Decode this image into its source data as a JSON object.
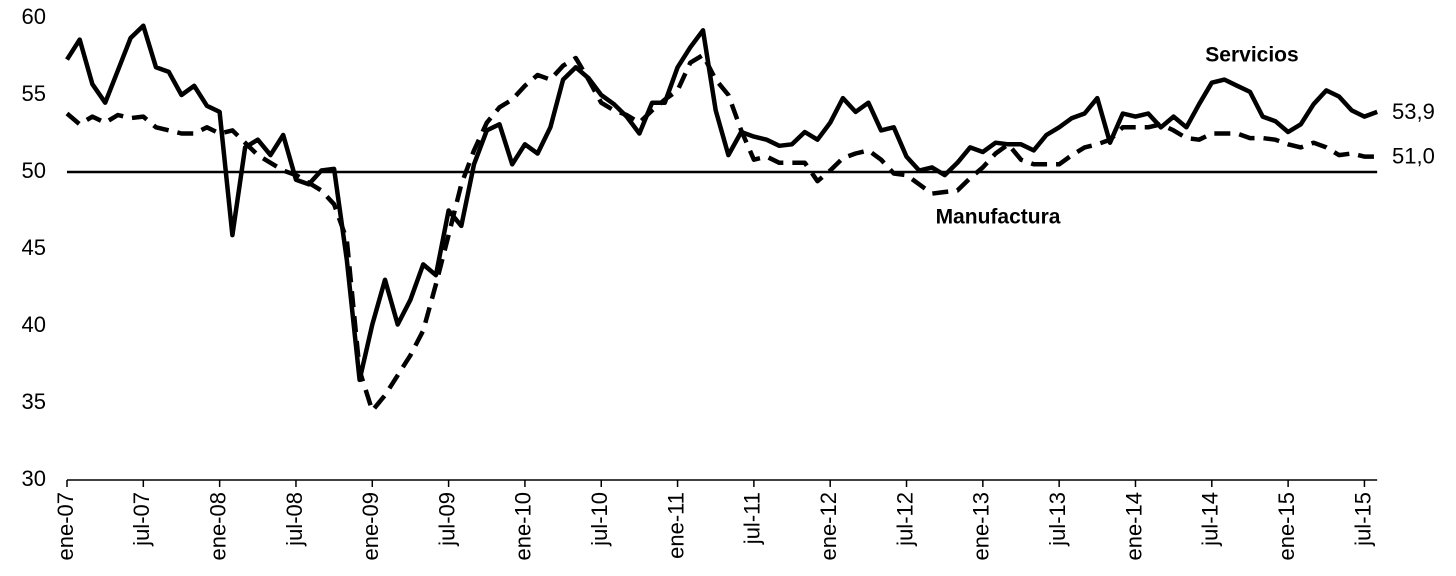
{
  "chart_data": {
    "type": "line",
    "categories": [
      "ene-07",
      null,
      null,
      null,
      null,
      null,
      "jul-07",
      null,
      null,
      null,
      null,
      null,
      "ene-08",
      null,
      null,
      null,
      null,
      null,
      "jul-08",
      null,
      null,
      null,
      null,
      null,
      "ene-09",
      null,
      null,
      null,
      null,
      null,
      "jul-09",
      null,
      null,
      null,
      null,
      null,
      "ene-10",
      null,
      null,
      null,
      null,
      null,
      "jul-10",
      null,
      null,
      null,
      null,
      null,
      "ene-11",
      null,
      null,
      null,
      null,
      null,
      "jul-11",
      null,
      null,
      null,
      null,
      null,
      "ene-12",
      null,
      null,
      null,
      null,
      null,
      "jul-12",
      null,
      null,
      null,
      null,
      null,
      "ene-13",
      null,
      null,
      null,
      null,
      null,
      "jul-13",
      null,
      null,
      null,
      null,
      null,
      "ene-14",
      null,
      null,
      null,
      null,
      null,
      "jul-14",
      null,
      null,
      null,
      null,
      null,
      "ene-15",
      null,
      null,
      null,
      null,
      null,
      "jul-15",
      null
    ],
    "series": [
      {
        "name": "Servicios",
        "color": "#000000",
        "style": "solid",
        "values": [
          57.3,
          58.6,
          55.7,
          54.5,
          56.6,
          58.7,
          59.5,
          56.8,
          56.5,
          55.0,
          55.6,
          54.3,
          53.9,
          45.9,
          51.6,
          52.1,
          51.1,
          52.4,
          49.5,
          49.2,
          50.1,
          50.2,
          44.3,
          36.5,
          40.1,
          43.0,
          40.1,
          41.7,
          44.0,
          43.3,
          47.5,
          46.5,
          50.5,
          52.7,
          53.1,
          50.5,
          51.8,
          51.2,
          52.9,
          56.0,
          56.8,
          56.1,
          55.0,
          54.4,
          53.6,
          52.5,
          54.5,
          54.5,
          56.8,
          58.1,
          59.2,
          54.0,
          51.1,
          52.6,
          52.3,
          52.1,
          51.7,
          51.8,
          52.6,
          52.1,
          53.2,
          54.8,
          53.9,
          54.5,
          52.7,
          52.9,
          51.0,
          50.1,
          50.3,
          49.8,
          50.6,
          51.6,
          51.3,
          51.9,
          51.8,
          51.8,
          51.4,
          52.4,
          52.9,
          53.5,
          53.8,
          54.8,
          51.9,
          53.8,
          53.6,
          53.8,
          52.9,
          53.6,
          52.9,
          54.4,
          55.8,
          56.0,
          55.6,
          55.2,
          53.6,
          53.3,
          52.6,
          53.1,
          54.4,
          55.3,
          54.9,
          54.0,
          53.6,
          53.9
        ]
      },
      {
        "name": "Manufactura",
        "color": "#000000",
        "style": "dashed",
        "values": [
          53.8,
          53.1,
          53.6,
          53.2,
          53.7,
          53.5,
          53.6,
          52.9,
          52.7,
          52.5,
          52.5,
          52.9,
          52.5,
          52.7,
          51.9,
          51.1,
          50.6,
          50.1,
          49.8,
          49.3,
          48.8,
          47.9,
          45.6,
          37.1,
          34.5,
          35.5,
          36.8,
          38.1,
          39.7,
          42.7,
          45.9,
          49.2,
          51.4,
          53.2,
          54.2,
          54.7,
          55.6,
          56.3,
          56.0,
          56.9,
          57.4,
          56.0,
          54.5,
          54.0,
          53.7,
          53.2,
          54.0,
          54.7,
          55.3,
          57.1,
          57.6,
          56.0,
          55.0,
          52.7,
          50.8,
          51.0,
          50.6,
          50.6,
          50.6,
          49.4,
          50.1,
          50.9,
          51.2,
          51.4,
          50.8,
          49.9,
          49.8,
          49.2,
          48.6,
          48.7,
          48.8,
          49.6,
          50.3,
          51.2,
          51.8,
          50.8,
          50.5,
          50.5,
          50.5,
          51.1,
          51.6,
          51.8,
          52.1,
          52.9,
          52.9,
          52.9,
          53.1,
          52.7,
          52.2,
          52.1,
          52.5,
          52.5,
          52.5,
          52.2,
          52.2,
          52.1,
          51.8,
          51.6,
          51.9,
          51.6,
          51.1,
          51.2,
          51.0,
          51.0
        ]
      }
    ],
    "annotations": [
      {
        "text": "53,9",
        "value": 53.9
      },
      {
        "text": "51,0",
        "value": 51.0
      }
    ],
    "reference_line": 50,
    "ylim": [
      30,
      60
    ],
    "yticks": [
      30,
      35,
      40,
      45,
      50,
      55,
      60
    ],
    "grid": false
  }
}
